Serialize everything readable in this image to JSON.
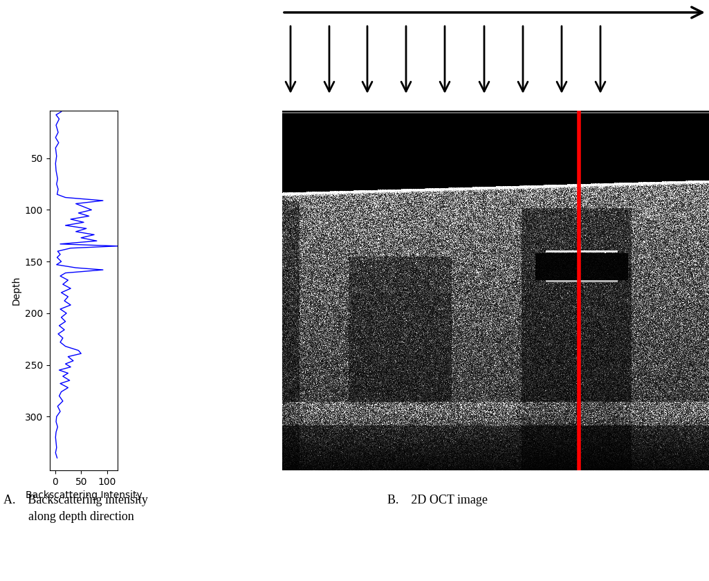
{
  "chart_data": [
    {
      "type": "line",
      "x_label": "Backscattering Intensity",
      "y_label": "Depth",
      "caption": "A.    Backscattering intensity\n        along depth direction",
      "color": "#0000ff",
      "x": [
        12,
        2,
        8,
        2,
        6,
        1,
        7,
        1,
        3,
        1,
        2,
        5,
        3,
        6,
        4,
        20,
        92,
        40,
        55,
        70,
        45,
        65,
        30,
        55,
        20,
        60,
        40,
        75,
        50,
        80,
        10,
        120,
        30,
        5,
        10,
        4,
        12,
        3,
        40,
        92,
        20,
        10,
        25,
        15,
        30,
        12,
        25,
        18,
        30,
        10,
        22,
        12,
        20,
        8,
        18,
        6,
        15,
        10,
        20,
        45,
        50,
        25,
        35,
        20,
        30,
        8,
        25,
        15,
        28,
        10,
        25,
        12,
        8,
        15,
        5,
        10,
        3,
        2,
        5,
        2,
        1,
        3,
        1,
        4
      ],
      "y": [
        5,
        8,
        12,
        18,
        25,
        30,
        35,
        40,
        48,
        55,
        62,
        70,
        75,
        80,
        85,
        88,
        91,
        94,
        97,
        100,
        103,
        106,
        109,
        112,
        115,
        118,
        121,
        124,
        127,
        130,
        133,
        135,
        137,
        140,
        143,
        146,
        150,
        153,
        156,
        158,
        161,
        164,
        168,
        172,
        176,
        180,
        184,
        188,
        192,
        196,
        200,
        204,
        208,
        212,
        216,
        220,
        224,
        228,
        232,
        236,
        239,
        242,
        246,
        249,
        252,
        255,
        258,
        261,
        265,
        268,
        272,
        276,
        280,
        285,
        290,
        295,
        300,
        305,
        310,
        315,
        320,
        330,
        335,
        340
      ],
      "xlim": [
        -10,
        120
      ],
      "ylim": [
        352,
        4
      ],
      "xticks": [
        0,
        50,
        100
      ],
      "yticks": [
        50,
        100,
        150,
        200,
        250,
        300
      ]
    },
    {
      "type": "image",
      "caption": "B.    2D OCT image"
    }
  ]
}
